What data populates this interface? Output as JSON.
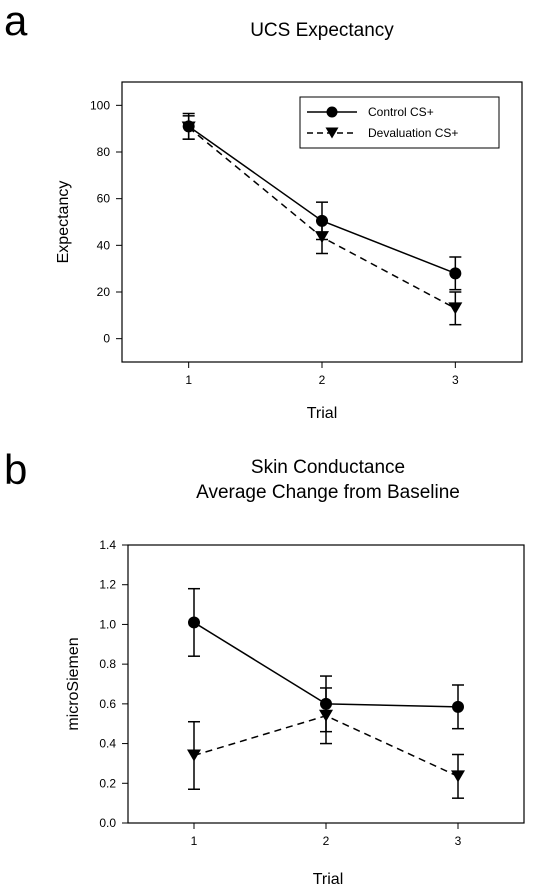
{
  "chart_data": [
    {
      "panel": "a",
      "type": "line",
      "title": "UCS Expectancy",
      "xlabel": "Trial",
      "ylabel": "Expectancy",
      "categories": [
        "1",
        "2",
        "3"
      ],
      "xlim": [
        0.5,
        3.5
      ],
      "ylim": [
        -10,
        110
      ],
      "yticks": [
        0,
        20,
        40,
        60,
        80,
        100
      ],
      "legend": "top-right",
      "series": [
        {
          "name": "Control CS+",
          "marker": "circle",
          "line": "solid",
          "values": [
            91,
            50.5,
            28
          ],
          "err": [
            5.5,
            8,
            7
          ]
        },
        {
          "name": "Devaluation CS+",
          "marker": "triangle-down",
          "line": "dashed",
          "values": [
            90.5,
            43.5,
            13
          ],
          "err": [
            5,
            7,
            7
          ]
        }
      ]
    },
    {
      "panel": "b",
      "type": "line",
      "title": [
        "Skin Conductance",
        "Average Change from Baseline"
      ],
      "xlabel": "Trial",
      "ylabel": "microSiemen",
      "categories": [
        "1",
        "2",
        "3"
      ],
      "xlim": [
        0.5,
        3.5
      ],
      "ylim": [
        0,
        1.4
      ],
      "yticks": [
        "0.0",
        "0.2",
        "0.4",
        "0.6",
        "0.8",
        "1.0",
        "1.2",
        "1.4"
      ],
      "legend": "none",
      "series": [
        {
          "marker": "circle",
          "line": "solid",
          "values": [
            1.01,
            0.6,
            0.585
          ],
          "err": [
            0.17,
            0.14,
            0.11
          ]
        },
        {
          "marker": "triangle-down",
          "line": "dashed",
          "values": [
            0.34,
            0.54,
            0.235
          ],
          "err": [
            0.17,
            0.14,
            0.11
          ]
        }
      ]
    }
  ]
}
